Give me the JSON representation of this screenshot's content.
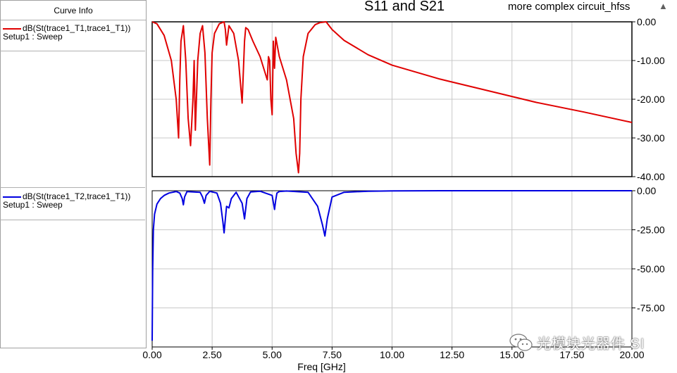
{
  "legend": {
    "header": "Curve Info",
    "entries": [
      {
        "label": "dB(St(trace1_T1,trace1_T1))",
        "sub": "Setup1 : Sweep",
        "color": "#e00000"
      },
      {
        "label": "dB(St(trace1_T2,trace1_T1))",
        "sub": "Setup1 : Sweep",
        "color": "#0000e0"
      }
    ]
  },
  "title": "S11 and S21",
  "project": "more complex circuit_hfss",
  "project_icon": "ansys-logo-icon",
  "watermark": "光模块光器件 SI",
  "watermark_icon": "wechat-icon",
  "chart_data": [
    {
      "type": "line",
      "title": "S11 and S21",
      "xlabel": "",
      "ylabel": "",
      "xlim": [
        0,
        20
      ],
      "ylim": [
        -40,
        0
      ],
      "yticks": [
        "0.00",
        "-10.00",
        "-20.00",
        "-30.00",
        "-40.00"
      ],
      "grid": true,
      "series": [
        {
          "name": "dB(St(trace1_T1,trace1_T1))",
          "color": "#e00000",
          "x": [
            0.0,
            0.2,
            0.5,
            0.8,
            1.0,
            1.1,
            1.15,
            1.2,
            1.3,
            1.4,
            1.5,
            1.6,
            1.7,
            1.75,
            1.8,
            1.9,
            2.0,
            2.1,
            2.2,
            2.3,
            2.4,
            2.45,
            2.5,
            2.6,
            2.8,
            3.0,
            3.05,
            3.1,
            3.2,
            3.4,
            3.6,
            3.75,
            3.85,
            3.9,
            4.0,
            4.2,
            4.5,
            4.8,
            4.85,
            4.9,
            4.95,
            5.0,
            5.05,
            5.1,
            5.15,
            5.3,
            5.6,
            5.9,
            6.0,
            6.1,
            6.15,
            6.2,
            6.3,
            6.5,
            6.8,
            7.0,
            7.25,
            7.5,
            8.0,
            9.0,
            10.0,
            12.0,
            14.0,
            16.0,
            18.0,
            20.0
          ],
          "y": [
            0.0,
            -0.5,
            -3.5,
            -10.0,
            -20.0,
            -30.0,
            -15.0,
            -5.0,
            -1.0,
            -10.0,
            -25.0,
            -32.0,
            -20.0,
            -10.0,
            -28.0,
            -10.0,
            -3.0,
            -1.0,
            -8.0,
            -25.0,
            -37.0,
            -20.0,
            -8.0,
            -3.0,
            -0.5,
            0.0,
            -2.0,
            -6.0,
            -1.0,
            -3.0,
            -10.0,
            -21.0,
            -5.0,
            -1.5,
            -2.0,
            -5.0,
            -9.0,
            -15.0,
            -9.0,
            -10.0,
            -20.0,
            -24.0,
            -5.0,
            -12.0,
            -4.0,
            -9.0,
            -15.0,
            -25.0,
            -34.0,
            -39.0,
            -34.0,
            -20.0,
            -9.0,
            -3.0,
            -0.7,
            -0.2,
            0.0,
            -2.0,
            -4.8,
            -8.5,
            -11.2,
            -14.8,
            -17.8,
            -20.8,
            -23.3,
            -26.0
          ]
        }
      ]
    },
    {
      "type": "line",
      "title": "",
      "xlabel": "Freq [GHz]",
      "ylabel": "",
      "xlim": [
        0,
        20
      ],
      "ylim": [
        -100,
        0
      ],
      "xticks": [
        "0.00",
        "2.50",
        "5.00",
        "7.50",
        "10.00",
        "12.50",
        "15.00",
        "17.50",
        "20.00"
      ],
      "yticks": [
        "0.00",
        "-25.00",
        "-50.00",
        "-75.00"
      ],
      "grid": true,
      "series": [
        {
          "name": "dB(St(trace1_T2,trace1_T1))",
          "color": "#0000e0",
          "x": [
            0.0,
            0.02,
            0.05,
            0.1,
            0.2,
            0.35,
            0.5,
            0.7,
            1.0,
            1.15,
            1.25,
            1.3,
            1.35,
            1.45,
            2.0,
            2.1,
            2.18,
            2.25,
            2.4,
            2.7,
            2.85,
            2.95,
            3.0,
            3.05,
            3.1,
            3.2,
            3.3,
            3.5,
            3.75,
            3.85,
            3.95,
            4.1,
            4.5,
            5.0,
            5.1,
            5.15,
            5.2,
            5.3,
            5.6,
            6.5,
            6.9,
            7.1,
            7.2,
            7.3,
            7.5,
            8.0,
            9.0,
            10.0,
            12.0,
            15.0,
            17.5,
            20.0
          ],
          "y": [
            -96.0,
            -52.0,
            -25.0,
            -15.0,
            -8.5,
            -5.0,
            -3.0,
            -1.5,
            -0.5,
            -1.5,
            -5.0,
            -9.0,
            -4.0,
            -0.6,
            -1.0,
            -4.0,
            -8.0,
            -3.0,
            -0.4,
            -1.5,
            -8.0,
            -20.0,
            -27.0,
            -18.0,
            -10.0,
            -11.0,
            -5.0,
            -1.0,
            -8.0,
            -18.0,
            -5.0,
            -0.8,
            -0.3,
            -3.0,
            -12.0,
            -6.0,
            -1.5,
            -0.5,
            -0.2,
            -1.0,
            -10.0,
            -22.0,
            -29.0,
            -18.0,
            -4.0,
            -1.0,
            -0.3,
            -0.1,
            0.0,
            0.0,
            0.0,
            0.0
          ]
        }
      ]
    }
  ]
}
